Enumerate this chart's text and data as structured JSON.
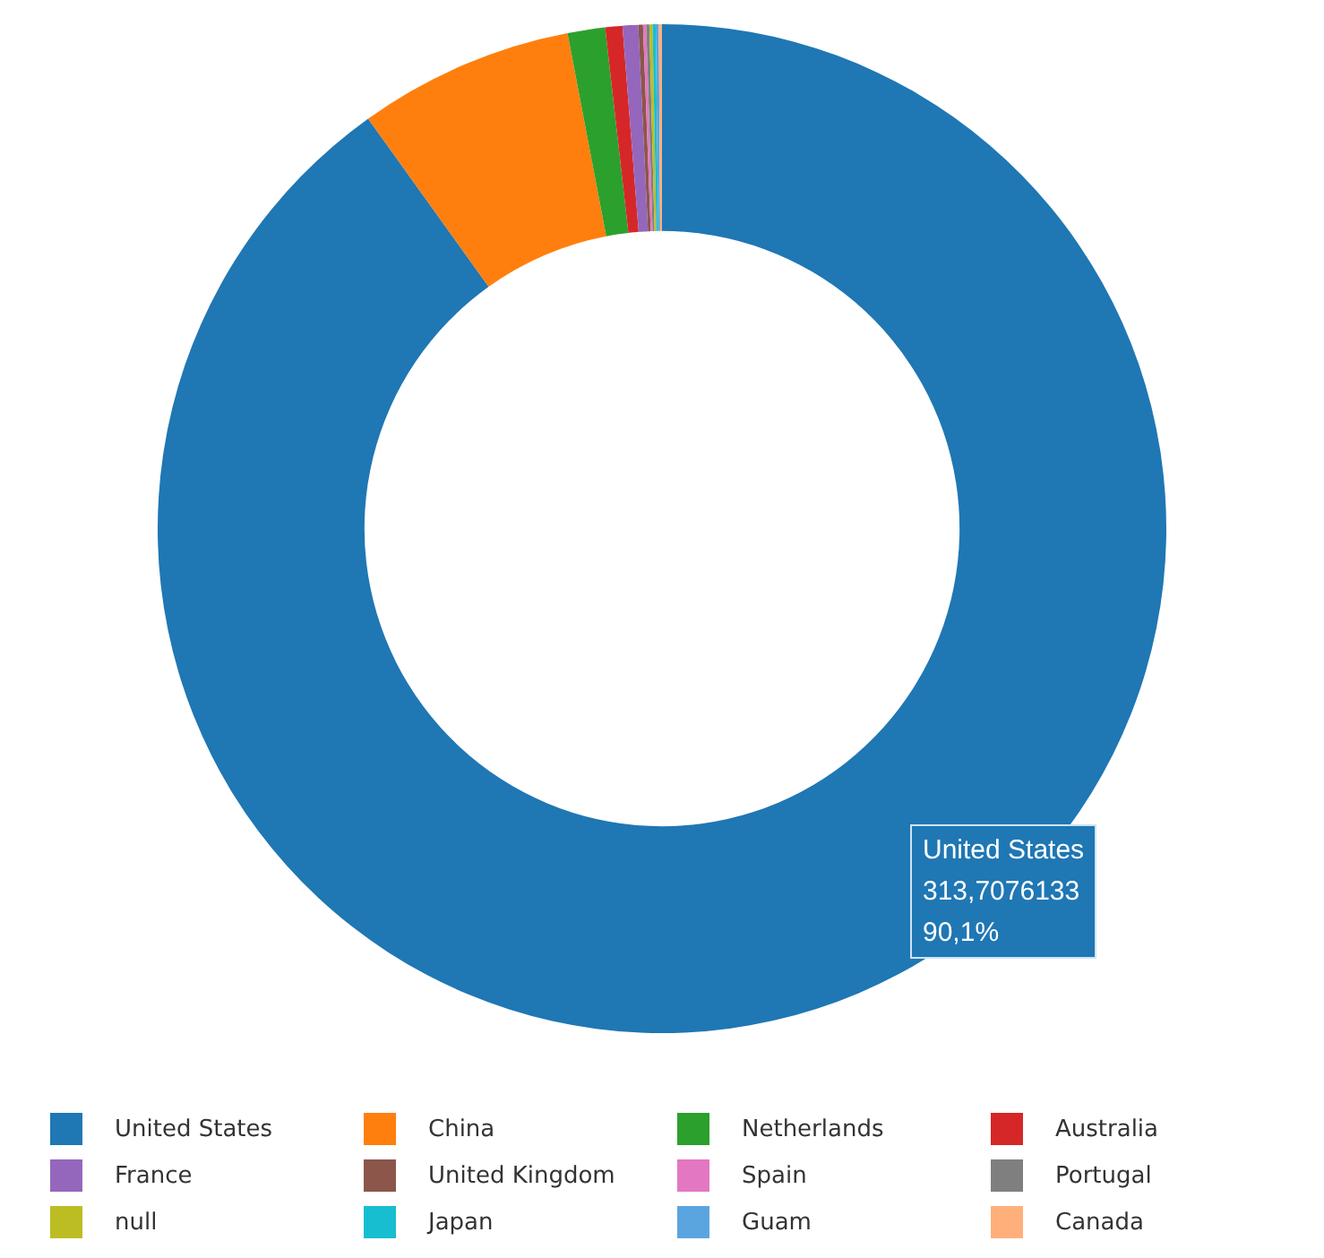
{
  "chart_data": {
    "type": "donut",
    "categories": [
      "United States",
      "China",
      "Netherlands",
      "Australia",
      "France",
      "United Kingdom",
      "Spain",
      "Portugal",
      "null",
      "Japan",
      "Guam",
      "Canada"
    ],
    "values": [
      90.1,
      6.9,
      1.2,
      0.55,
      0.5,
      0.15,
      0.1,
      0.1,
      0.1,
      0.1,
      0.1,
      0.1
    ],
    "colors": [
      "#1f77b4",
      "#ff7f0e",
      "#2ca02c",
      "#d62728",
      "#9467bd",
      "#8c564b",
      "#e377c2",
      "#7f7f7f",
      "#bcbd22",
      "#17becf",
      "#5aa5e0",
      "#ffb07a"
    ],
    "annotations": [
      "United States",
      "313,7076133",
      "90,1%"
    ],
    "legend": "bottom"
  }
}
